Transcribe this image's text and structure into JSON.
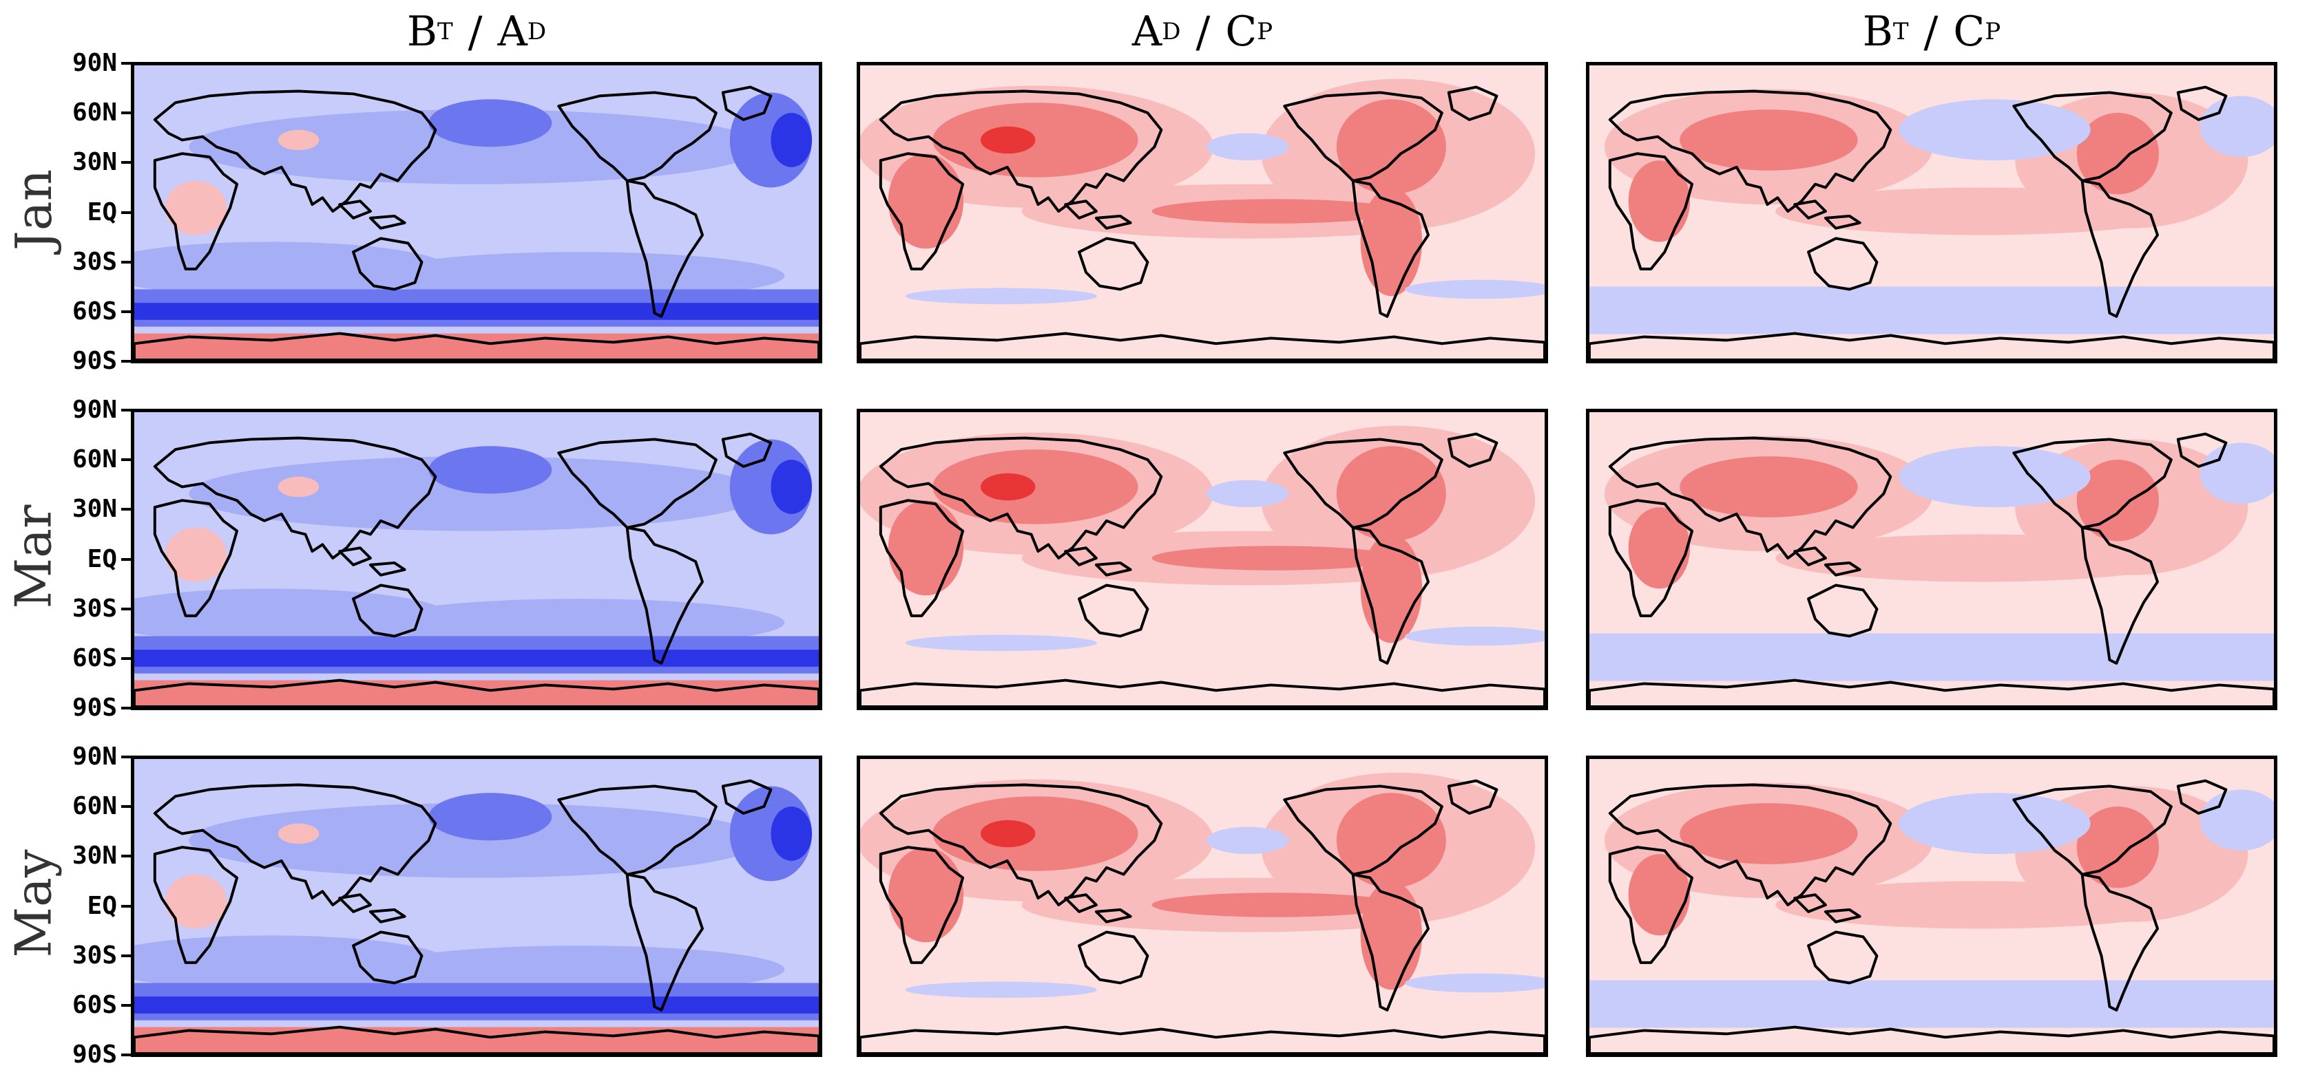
{
  "columns": [
    {
      "num": "B",
      "num_sub": "T",
      "den": "A",
      "den_sub": "D"
    },
    {
      "num": "A",
      "num_sub": "D",
      "den": "C",
      "den_sub": "P"
    },
    {
      "num": "B",
      "num_sub": "T",
      "den": "C",
      "den_sub": "P"
    }
  ],
  "rows": [
    "Jan",
    "Mar",
    "May"
  ],
  "lat_ticks": [
    "90N",
    "60N",
    "30N",
    "EQ",
    "30S",
    "60S",
    "90S"
  ],
  "colors": {
    "red_dark": "#e83636",
    "red_mid": "#f08080",
    "red_light": "#f9bcbc",
    "red_pale": "#fde0e0",
    "blue_pale": "#c7ccfa",
    "blue_light": "#a6aef6",
    "blue_mid": "#6b76ef",
    "blue_dark": "#2c35e6",
    "coast": "#000000"
  },
  "icons": {
    "coastline": "world-coastline-pacific-centered"
  }
}
